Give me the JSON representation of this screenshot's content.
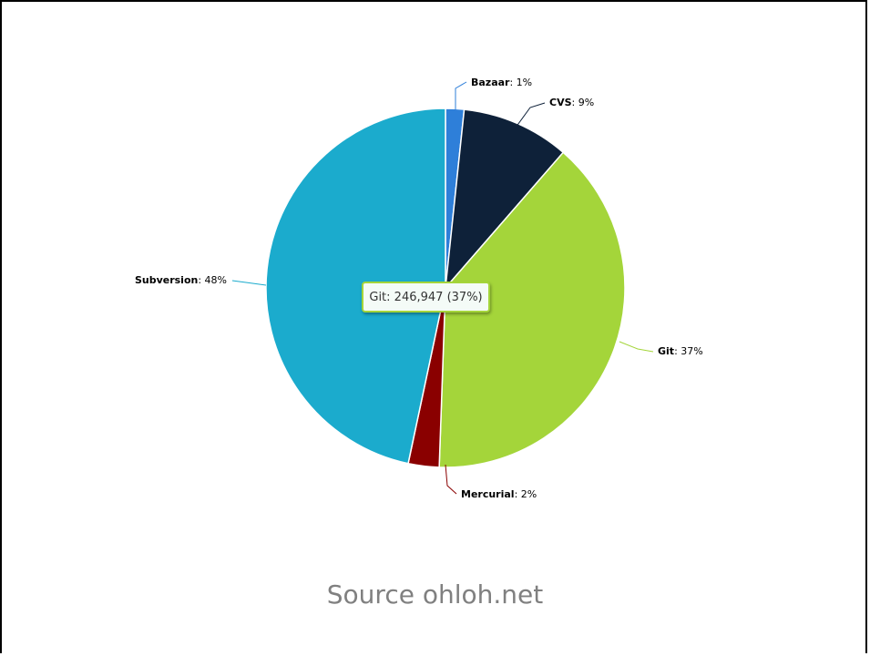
{
  "chart_data": {
    "type": "pie",
    "slices": [
      {
        "name": "Bazaar",
        "value": 1,
        "label_value": "1%",
        "color": "#2e7fd9"
      },
      {
        "name": "CVS",
        "value": 9,
        "label_value": "9%",
        "color": "#0e2139"
      },
      {
        "name": "Git",
        "value": 37,
        "label_value": "37%",
        "color": "#a4d53a"
      },
      {
        "name": "Mercurial",
        "value": 2,
        "label_value": "2%",
        "color": "#8a0000"
      },
      {
        "name": "Subversion",
        "value": 48,
        "label_value": "48%",
        "color": "#1babcd"
      }
    ],
    "tooltip": {
      "name": "Git",
      "text": ": 246,947 (37%)"
    }
  },
  "source": "Source ohloh.net"
}
